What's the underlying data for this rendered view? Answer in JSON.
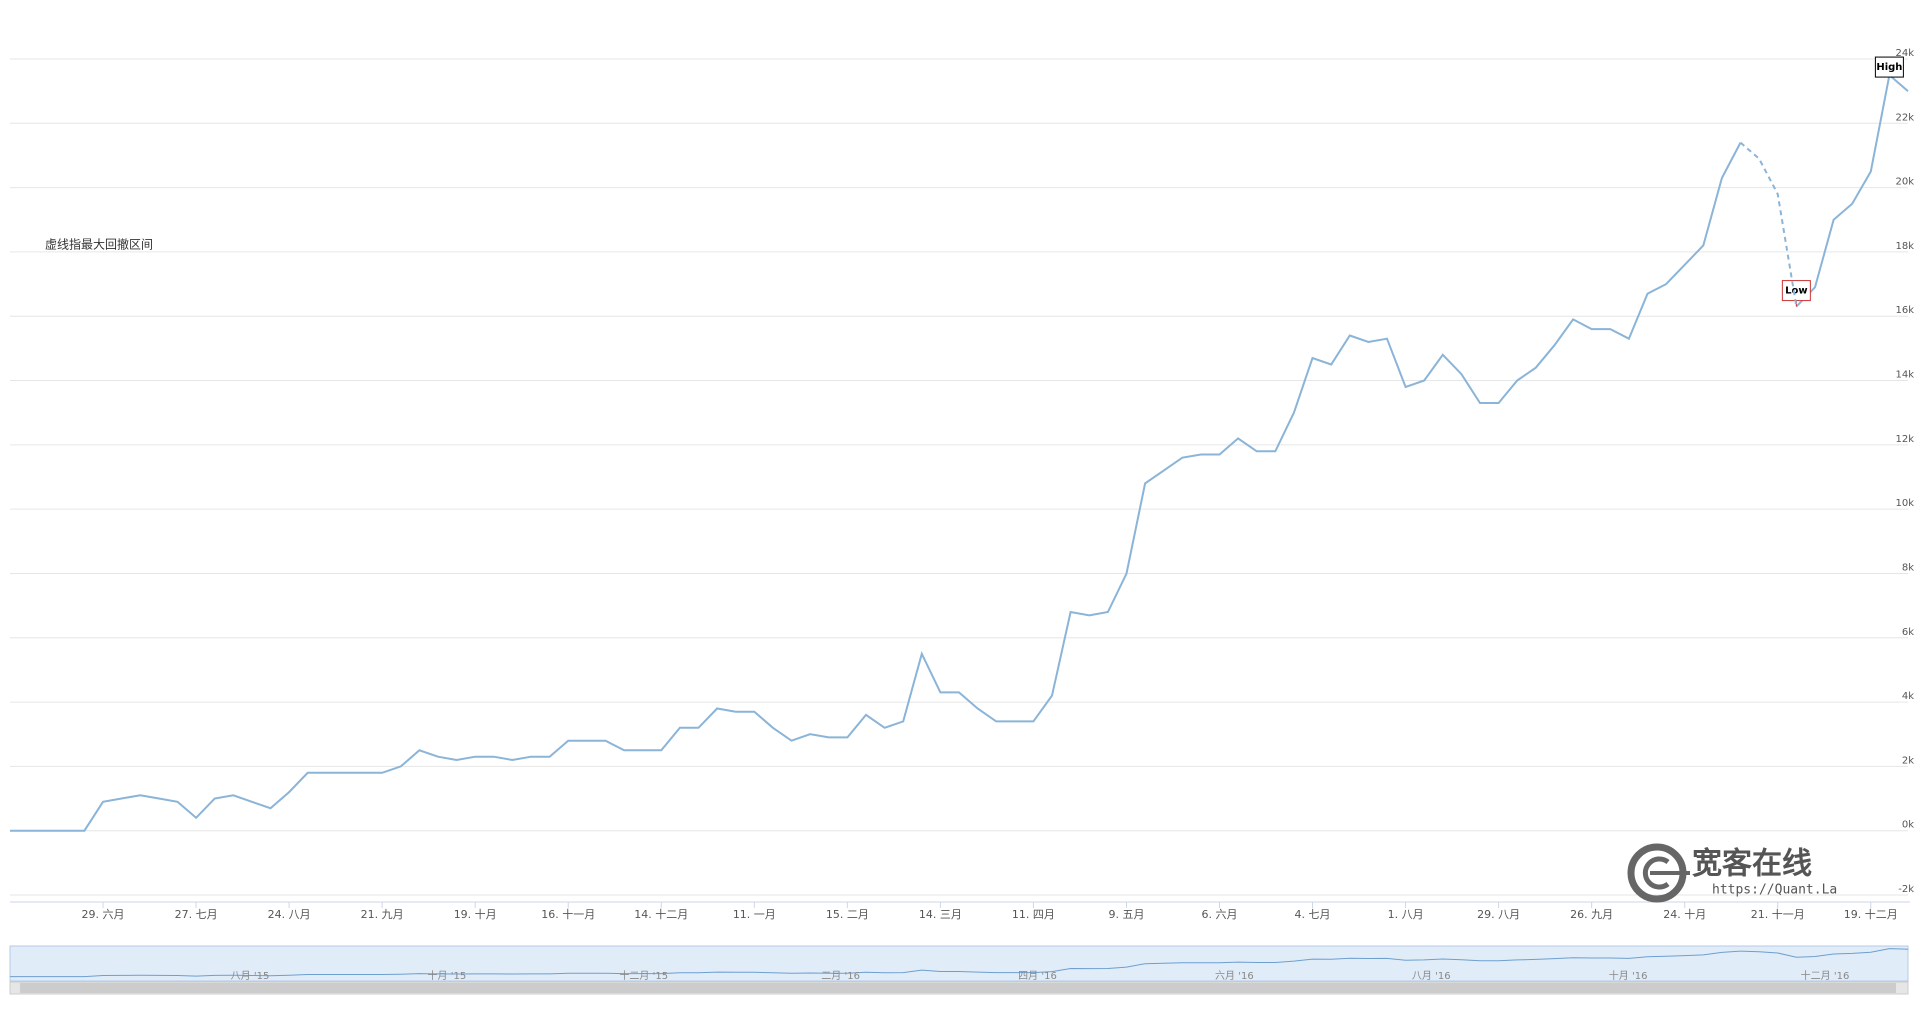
{
  "chart_data": {
    "type": "line",
    "annotation": "虚线指最大回撤区间",
    "watermark": {
      "title": "宽客在线",
      "url": "https://Quant.La"
    },
    "categories": [
      null,
      null,
      null,
      null,
      null,
      "29. 六月",
      null,
      null,
      null,
      null,
      "27. 七月",
      null,
      null,
      null,
      null,
      "24. 八月",
      null,
      null,
      null,
      null,
      "21. 九月",
      null,
      null,
      null,
      null,
      "19. 十月",
      null,
      null,
      null,
      null,
      "16. 十一月",
      null,
      null,
      null,
      null,
      "14. 十二月",
      null,
      null,
      null,
      null,
      "11. 一月",
      null,
      null,
      null,
      null,
      "15. 二月",
      null,
      null,
      null,
      null,
      "14. 三月",
      null,
      null,
      null,
      null,
      "11. 四月",
      null,
      null,
      null,
      null,
      "9. 五月",
      null,
      null,
      null,
      null,
      "6. 六月",
      null,
      null,
      null,
      null,
      "4. 七月",
      null,
      null,
      null,
      null,
      "1. 八月",
      null,
      null,
      null,
      null,
      "29. 八月",
      null,
      null,
      null,
      null,
      "26. 九月",
      null,
      null,
      null,
      null,
      "24. 十月",
      null,
      null,
      null,
      null,
      "21. 十一月",
      null,
      null,
      null,
      null,
      "19. 十二月",
      null,
      null
    ],
    "series": [
      {
        "color": "#8ab4d8",
        "values": [
          0,
          0,
          0,
          0,
          0,
          900,
          1000,
          1100,
          1000,
          900,
          400,
          1000,
          1100,
          900,
          700,
          1200,
          1800,
          1800,
          1800,
          1800,
          1800,
          2000,
          2500,
          2300,
          2200,
          2300,
          2300,
          2200,
          2300,
          2300,
          2800,
          2800,
          2800,
          2500,
          2500,
          2500,
          3200,
          3200,
          3800,
          3700,
          3700,
          3200,
          2800,
          3000,
          2900,
          2900,
          3600,
          3200,
          3400,
          5500,
          4300,
          4300,
          3800,
          3400,
          3400,
          3400,
          4200,
          6800,
          6700,
          6800,
          8000,
          10800,
          11200,
          11600,
          11700,
          11700,
          12200,
          11800,
          11800,
          13000,
          14700,
          14500,
          15400,
          15200,
          15300,
          13800,
          14000,
          14800,
          14200,
          13300,
          13300,
          14000,
          14400,
          15100,
          15900,
          15600,
          15600,
          15300,
          16700,
          17000,
          17600,
          18200,
          20300,
          21400,
          null,
          null,
          16300,
          16900,
          19000,
          19500,
          20500,
          23500,
          23000
        ],
        "flags": [
          null,
          null,
          null,
          null,
          null,
          null,
          null,
          null,
          null,
          null,
          null,
          null,
          null,
          null,
          null,
          null,
          null,
          null,
          null,
          null,
          null,
          null,
          null,
          null,
          null,
          null,
          null,
          null,
          null,
          null,
          null,
          null,
          null,
          null,
          null,
          null,
          null,
          null,
          null,
          null,
          null,
          null,
          null,
          null,
          null,
          null,
          null,
          null,
          null,
          null,
          null,
          null,
          null,
          null,
          null,
          null,
          null,
          null,
          null,
          null,
          null,
          null,
          null,
          null,
          null,
          null,
          null,
          null,
          null,
          null,
          null,
          null,
          null,
          null,
          null,
          null,
          null,
          null,
          null,
          null,
          null,
          null,
          null,
          null,
          null,
          null,
          null,
          null,
          null,
          null,
          null,
          null,
          null,
          null,
          null,
          null,
          "Low",
          null,
          null,
          null,
          null,
          "High",
          null
        ]
      },
      {
        "color": "#8ab4d8",
        "dash": "5,4",
        "values": [
          null,
          null,
          null,
          null,
          null,
          null,
          null,
          null,
          null,
          null,
          null,
          null,
          null,
          null,
          null,
          null,
          null,
          null,
          null,
          null,
          null,
          null,
          null,
          null,
          null,
          null,
          null,
          null,
          null,
          null,
          null,
          null,
          null,
          null,
          null,
          null,
          null,
          null,
          null,
          null,
          null,
          null,
          null,
          null,
          null,
          null,
          null,
          null,
          null,
          null,
          null,
          null,
          null,
          null,
          null,
          null,
          null,
          null,
          null,
          null,
          null,
          null,
          null,
          null,
          null,
          null,
          null,
          null,
          null,
          null,
          null,
          null,
          null,
          null,
          null,
          null,
          null,
          null,
          null,
          null,
          null,
          null,
          null,
          null,
          null,
          null,
          null,
          null,
          null,
          null,
          null,
          null,
          null,
          21400,
          20900,
          19800,
          16300,
          null,
          null,
          null,
          null,
          null,
          null
        ]
      }
    ],
    "ylim": [
      -2000,
      24000
    ],
    "yticks": [
      {
        "value": -2000,
        "label": "-2k"
      },
      {
        "value": 0,
        "label": "0k"
      },
      {
        "value": 2000,
        "label": "2k"
      },
      {
        "value": 4000,
        "label": "4k"
      },
      {
        "value": 6000,
        "label": "6k"
      },
      {
        "value": 8000,
        "label": "8k"
      },
      {
        "value": 10000,
        "label": "10k"
      },
      {
        "value": 12000,
        "label": "12k"
      },
      {
        "value": 14000,
        "label": "14k"
      },
      {
        "value": 16000,
        "label": "16k"
      },
      {
        "value": 18000,
        "label": "18k"
      },
      {
        "value": 20000,
        "label": "20k"
      },
      {
        "value": 22000,
        "label": "22k"
      },
      {
        "value": 24000,
        "label": "24k"
      }
    ],
    "grid": true,
    "navigator": {
      "labels": [
        "八月 '15",
        "十月 '15",
        "十二月 '15",
        "二月 '16",
        "四月 '16",
        "六月 '16",
        "八月 '16",
        "十月 '16",
        "十二月 '16"
      ]
    }
  }
}
